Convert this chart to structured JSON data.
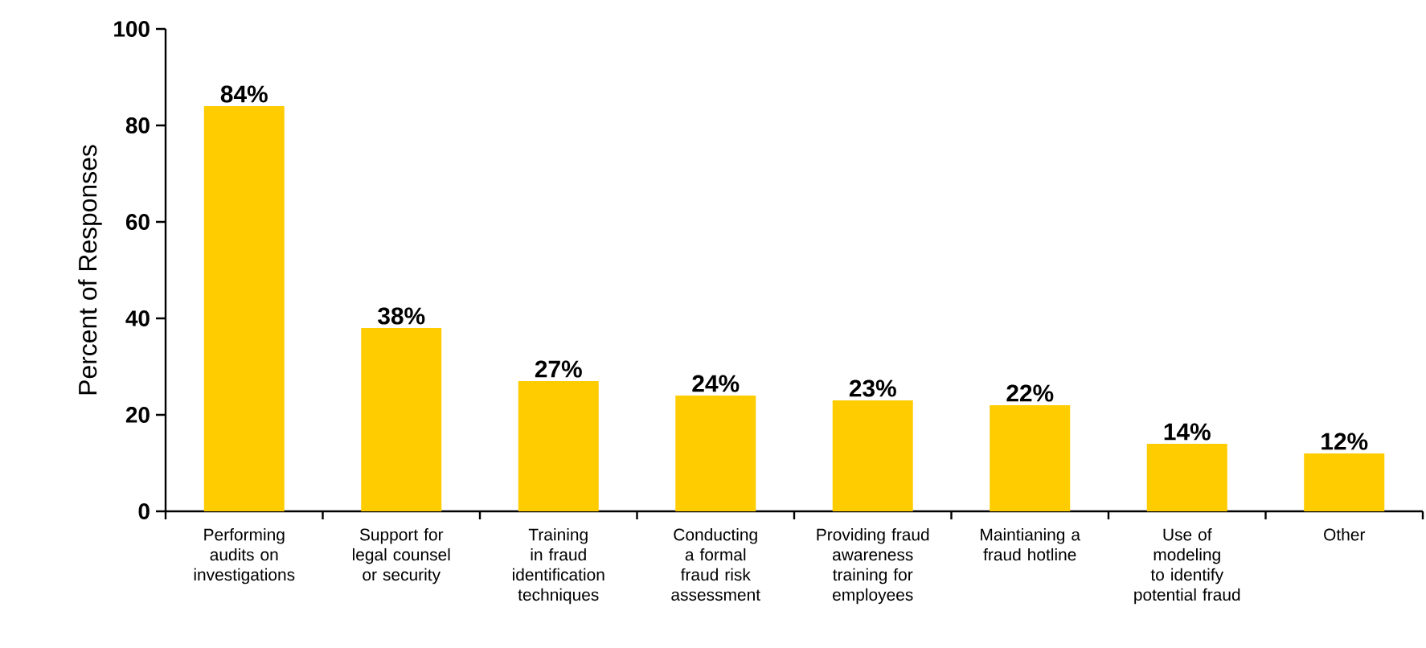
{
  "chart_data": {
    "type": "bar",
    "ylabel": "Percent of Responses",
    "categories": [
      "Performing audits on investigations",
      "Support for legal counsel or security",
      "Training in fraud identification techniques",
      "Conducting a formal fraud risk assessment",
      "Providing fraud awareness training for employees",
      "Maintianing a fraud hotline",
      "Use of modeling to identify potential fraud",
      "Other"
    ],
    "values": [
      84,
      38,
      27,
      24,
      23,
      22,
      14,
      12
    ],
    "value_labels": [
      "84%",
      "38%",
      "27%",
      "24%",
      "23%",
      "22%",
      "14%",
      "12%"
    ],
    "color": "#ffcc00",
    "ylim": [
      0,
      100
    ],
    "yticks": [
      0,
      20,
      40,
      60,
      80,
      100
    ]
  }
}
